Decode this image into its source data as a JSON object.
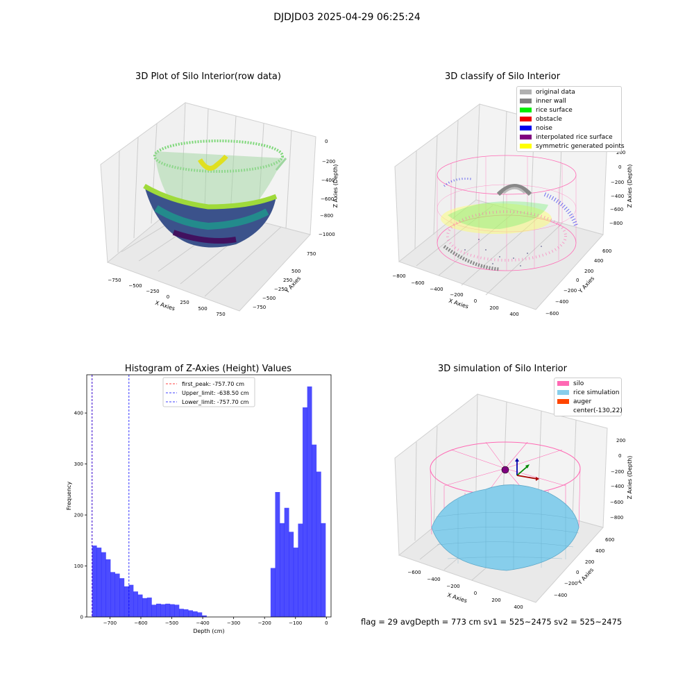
{
  "figure": {
    "title": "DJDJD03 2025-04-29 06:25:24",
    "footer": "flag = 29  avgDepth = 773 cm  sv1 = 525~2475  sv2 = 525~2475"
  },
  "panels": {
    "raw": {
      "title": "3D Plot of Silo Interior(row data)",
      "xlabel": "X Axies",
      "ylabel": "Y Axies",
      "zlabel": "Z Axies (Depth)",
      "xticks": [
        "−750",
        "−500",
        "−250",
        "0",
        "250",
        "500",
        "750"
      ],
      "yticks": [
        "750",
        "500",
        "250",
        "0",
        "−250",
        "−500",
        "−750"
      ],
      "zticks": [
        "0",
        "−200",
        "−400",
        "−600",
        "−800",
        "−1000"
      ]
    },
    "classify": {
      "title": "3D classify of Silo Interior",
      "xlabel": "X Axies",
      "ylabel": "Y Axies",
      "zlabel": "Z Axies (Depth)",
      "xticks": [
        "−800",
        "−600",
        "−400",
        "−200",
        "0",
        "200",
        "400"
      ],
      "yticks": [
        "600",
        "400",
        "200",
        "0",
        "−200",
        "−400",
        "−600"
      ],
      "zticks": [
        "200",
        "0",
        "−200",
        "−400",
        "−600",
        "−800"
      ],
      "legend": [
        {
          "label": "original data",
          "color": "#b0b0b0"
        },
        {
          "label": "inner wall",
          "color": "#808080"
        },
        {
          "label": "rice surface",
          "color": "#00ee00"
        },
        {
          "label": "obstacle",
          "color": "#ee0000"
        },
        {
          "label": "noise",
          "color": "#0000ee"
        },
        {
          "label": "interpolated rice surface",
          "color": "#800080"
        },
        {
          "label": "symmetric generated points",
          "color": "#ffff00"
        }
      ]
    },
    "simulation": {
      "title": "3D simulation of Silo Interior",
      "xlabel": "X Axies",
      "ylabel": "Y Axies",
      "zlabel": "Z Axies (Depth)",
      "xticks": [
        "−600",
        "−400",
        "−200",
        "0",
        "200",
        "400"
      ],
      "yticks": [
        "600",
        "400",
        "200",
        "0",
        "−200",
        "−400"
      ],
      "zticks": [
        "200",
        "0",
        "−200",
        "−400",
        "−600",
        "−800"
      ],
      "legend": [
        {
          "label": "silo",
          "color": "#ff69b4"
        },
        {
          "label": "rice simulation",
          "color": "#87ceeb"
        },
        {
          "label": "auger",
          "color": "#ff4500"
        },
        {
          "label": "center(-130,22)",
          "color": "#ffffff"
        }
      ]
    }
  },
  "chart_data": {
    "type": "bar",
    "title": "Histogram of Z-Axies (Height) Values",
    "xlabel": "Depth (cm)",
    "ylabel": "Frequency",
    "xlim": [
      -775,
      15
    ],
    "ylim": [
      0,
      475
    ],
    "xticks": [
      -700,
      -600,
      -500,
      -400,
      -300,
      -200,
      -100,
      0
    ],
    "xtick_labels": [
      "−700",
      "−600",
      "−500",
      "−400",
      "−300",
      "−200",
      "−100",
      "0"
    ],
    "yticks": [
      0,
      100,
      200,
      300,
      400
    ],
    "bar_color": "#0000ff",
    "bin_start": -757.7,
    "bin_width": 14.8,
    "counts": [
      140,
      136,
      127,
      113,
      88,
      85,
      76,
      60,
      63,
      50,
      44,
      37,
      38,
      24,
      26,
      25,
      26,
      25,
      24,
      16,
      15,
      13,
      11,
      9,
      3,
      0,
      0,
      0,
      0,
      0,
      0,
      0,
      0,
      0,
      0,
      0,
      0,
      0,
      0,
      96,
      245,
      184,
      214,
      167,
      136,
      183,
      411,
      452,
      338,
      285,
      184
    ],
    "vlines": [
      {
        "label": "first_peak: -757.70 cm",
        "x": -757.7,
        "color": "#ff0000"
      },
      {
        "label": "Upper_limit: -638.50 cm",
        "x": -638.5,
        "color": "#0000ff"
      },
      {
        "label": "Lower_limit: -757.70 cm",
        "x": -757.7,
        "color": "#0000ff"
      }
    ]
  }
}
